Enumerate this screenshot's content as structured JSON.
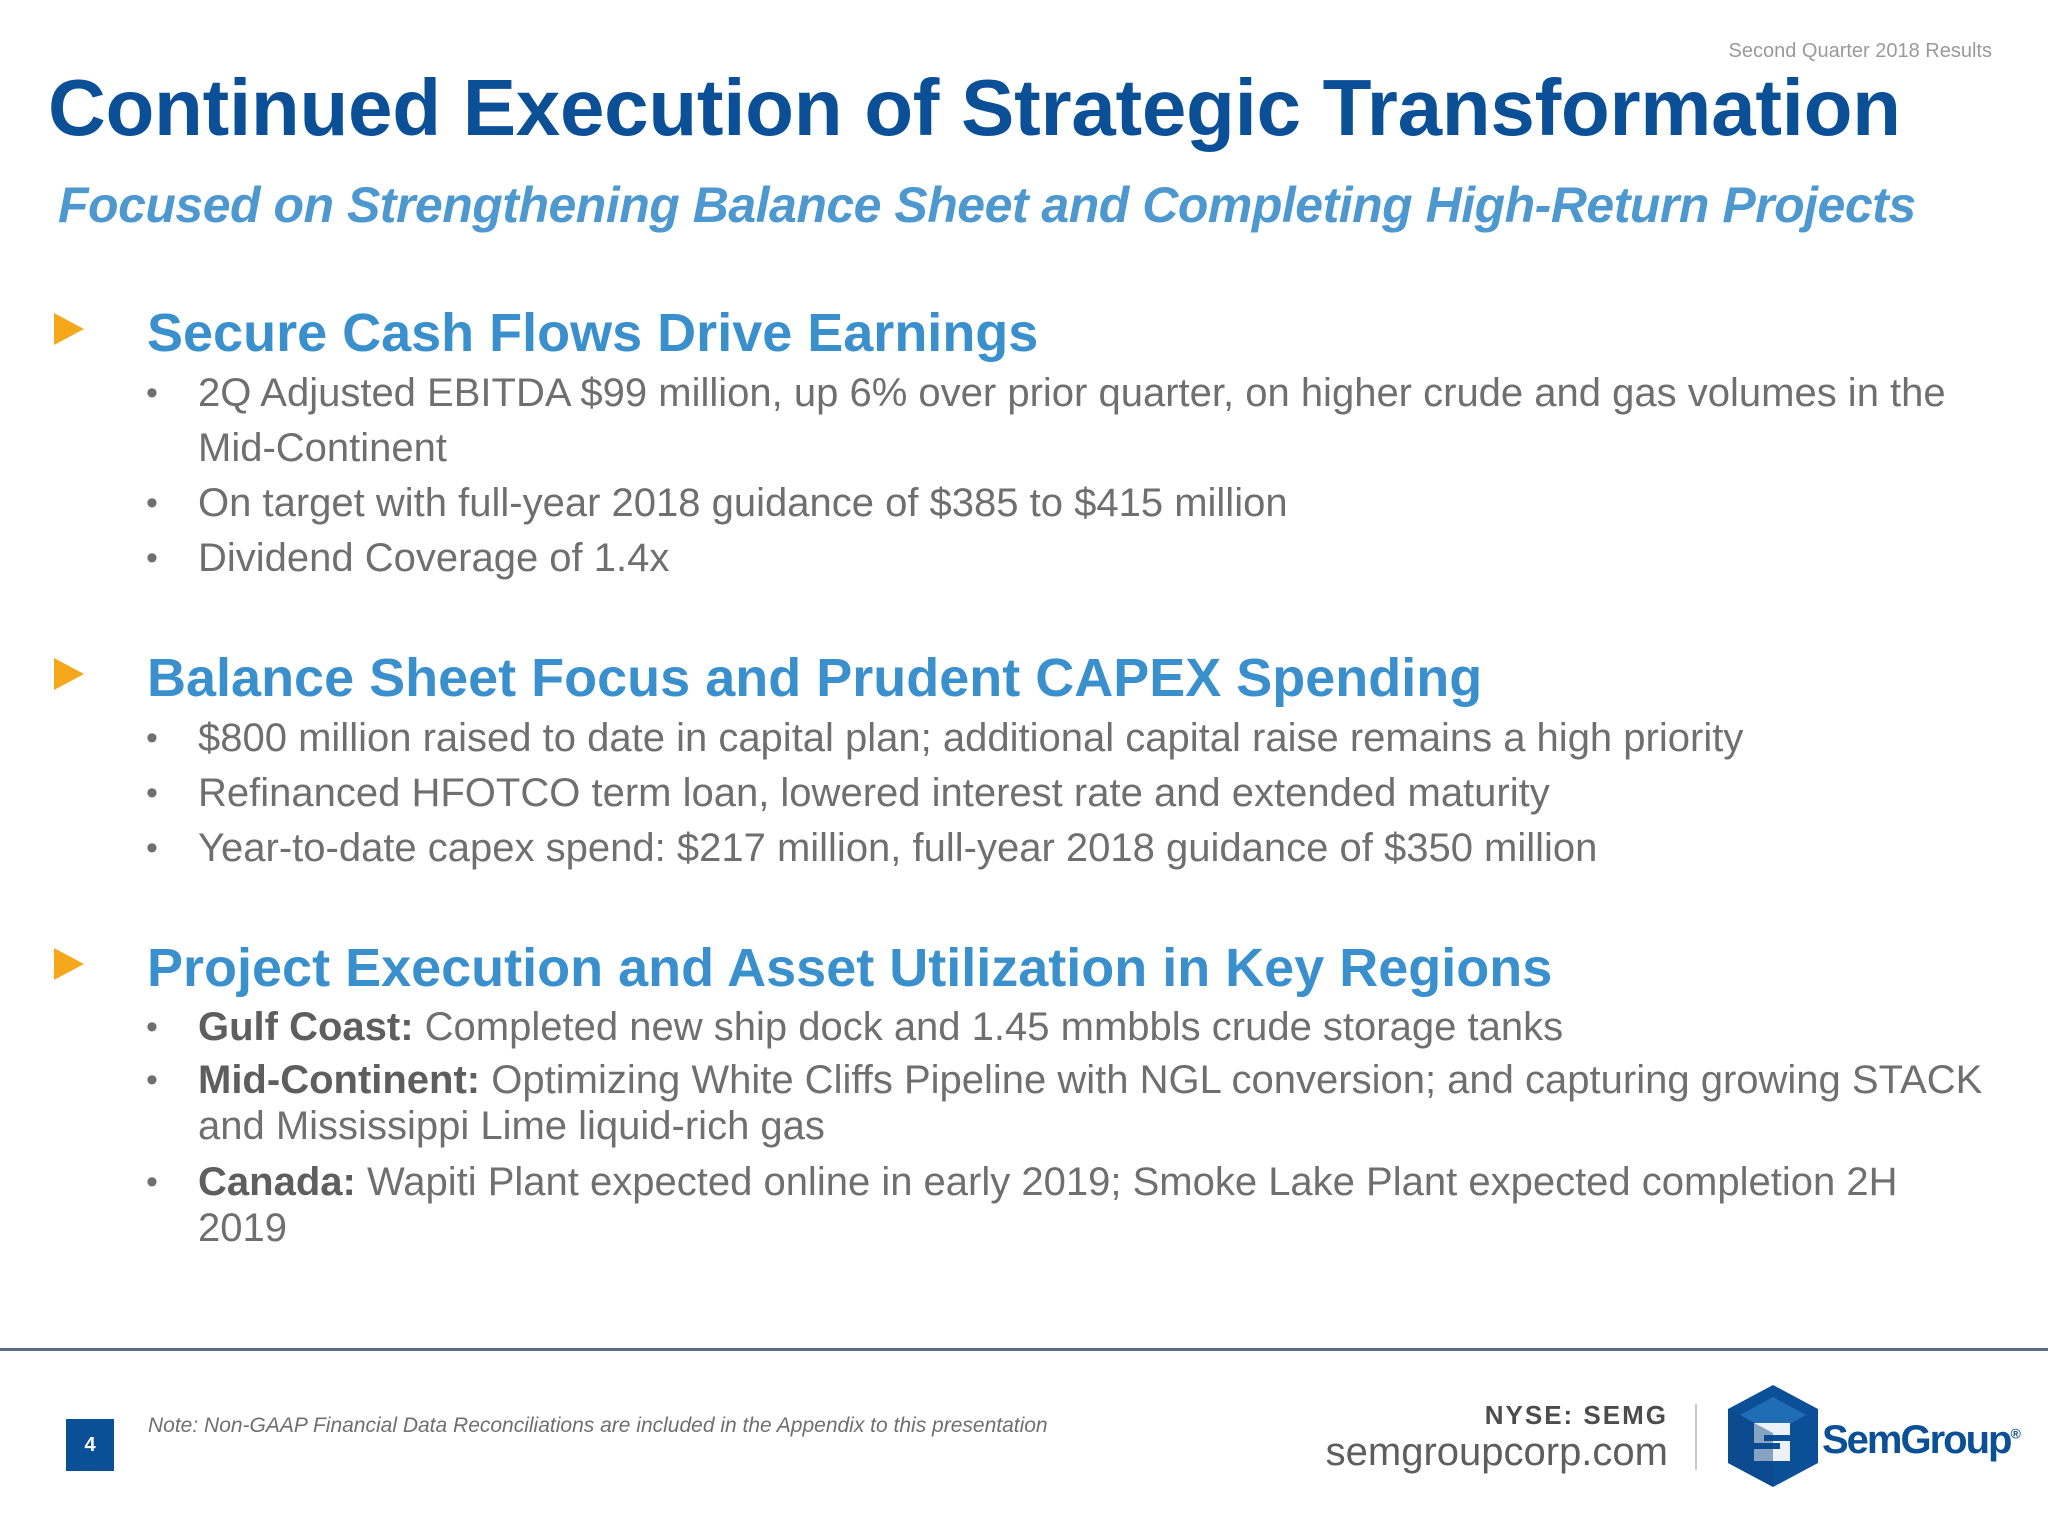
{
  "header": {
    "tag": "Second Quarter 2018 Results",
    "title": "Continued Execution of Strategic Transformation",
    "subtitle": "Focused on Strengthening Balance Sheet and Completing High-Return Projects"
  },
  "sections": [
    {
      "title": "Secure Cash Flows Drive Earnings",
      "bullets": [
        {
          "text": "2Q Adjusted EBITDA $99 million, up 6% over prior quarter, on higher crude and gas volumes in the Mid-Continent"
        },
        {
          "text": "On target with full-year 2018 guidance of $385 to $415 million"
        },
        {
          "text": "Dividend Coverage of 1.4x"
        }
      ]
    },
    {
      "title": "Balance Sheet Focus and Prudent CAPEX Spending",
      "bullets": [
        {
          "text": "$800 million raised to date in capital plan; additional capital raise remains a high priority"
        },
        {
          "text": "Refinanced HFOTCO term loan, lowered interest rate and extended maturity"
        },
        {
          "text": "Year-to-date capex spend: $217 million, full-year 2018 guidance of $350 million"
        }
      ]
    },
    {
      "title": "Project Execution and Asset Utilization in Key Regions",
      "bullets": [
        {
          "label": "Gulf Coast:",
          "text": "Completed new ship dock and 1.45 mmbbls crude storage tanks"
        },
        {
          "label": "Mid-Continent:",
          "text": "Optimizing White Cliffs Pipeline with NGL conversion; and capturing growing STACK and Mississippi Lime liquid-rich gas"
        },
        {
          "label": "Canada:",
          "text": "Wapiti Plant expected online in early 2019; Smoke Lake Plant expected completion 2H 2019"
        }
      ]
    }
  ],
  "footer": {
    "page_number": "4",
    "note": "Note:  Non-GAAP Financial Data Reconciliations are included in the Appendix to this presentation",
    "ticker": "NYSE: SEMG",
    "website": "semgroupcorp.com",
    "logo_text": "SemGroup",
    "logo_registered": "®"
  },
  "colors": {
    "title": "#0b4f97",
    "subtitle": "#4d98cf",
    "section_title": "#3a90cc",
    "arrow": "#f5a81b",
    "body_text": "#6f6f6f"
  },
  "icons": {
    "section_marker": "triangle-arrow-icon",
    "logo": "semgroup-logo-icon"
  }
}
